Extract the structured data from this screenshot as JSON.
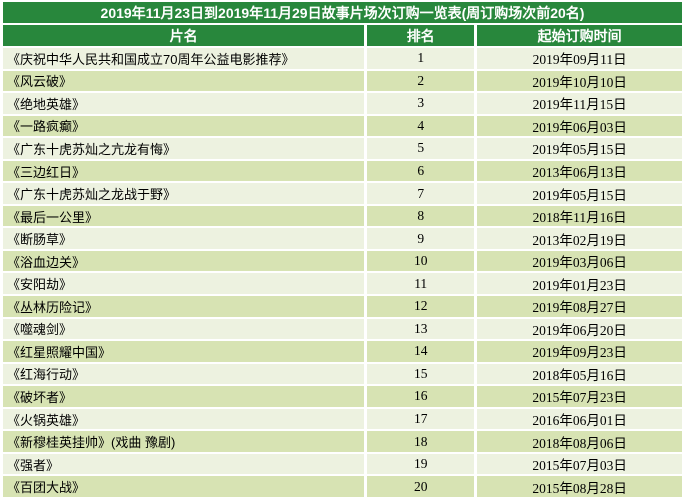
{
  "chart_data": {
    "type": "table",
    "title": "2019年11月23日到2019年11月29日故事片场次订购一览表(周订购场次前20名)",
    "columns": [
      "片名",
      "排名",
      "起始订购时间"
    ],
    "rows": [
      {
        "name": "《庆祝中华人民共和国成立70周年公益电影推荐》",
        "rank": "1",
        "date": "2019年09月11日"
      },
      {
        "name": "《风云破》",
        "rank": "2",
        "date": "2019年10月10日"
      },
      {
        "name": "《绝地英雄》",
        "rank": "3",
        "date": "2019年11月15日"
      },
      {
        "name": "《一路疯癫》",
        "rank": "4",
        "date": "2019年06月03日"
      },
      {
        "name": "《广东十虎苏灿之亢龙有悔》",
        "rank": "5",
        "date": "2019年05月15日"
      },
      {
        "name": "《三边红日》",
        "rank": "6",
        "date": "2013年06月13日"
      },
      {
        "name": "《广东十虎苏灿之龙战于野》",
        "rank": "7",
        "date": "2019年05月15日"
      },
      {
        "name": "《最后一公里》",
        "rank": "8",
        "date": "2018年11月16日"
      },
      {
        "name": "《断肠草》",
        "rank": "9",
        "date": "2013年02月19日"
      },
      {
        "name": "《浴血边关》",
        "rank": "10",
        "date": "2019年03月06日"
      },
      {
        "name": "《安阳劫》",
        "rank": "11",
        "date": "2019年01月23日"
      },
      {
        "name": "《丛林历险记》",
        "rank": "12",
        "date": "2019年08月27日"
      },
      {
        "name": "《噬魂剑》",
        "rank": "13",
        "date": "2019年06月20日"
      },
      {
        "name": "《红星照耀中国》",
        "rank": "14",
        "date": "2019年09月23日"
      },
      {
        "name": "《红海行动》",
        "rank": "15",
        "date": "2018年05月16日"
      },
      {
        "name": "《破坏者》",
        "rank": "16",
        "date": "2015年07月23日"
      },
      {
        "name": "《火锅英雄》",
        "rank": "17",
        "date": "2016年06月01日"
      },
      {
        "name": "《新穆桂英挂帅》(戏曲 豫剧)",
        "rank": "18",
        "date": "2018年08月06日"
      },
      {
        "name": "《强者》",
        "rank": "19",
        "date": "2015年07月03日"
      },
      {
        "name": "《百团大战》",
        "rank": "20",
        "date": "2015年08月28日"
      }
    ],
    "layout": {
      "legend": "none",
      "grid": "white gridlines between cells",
      "striping": "alternating light and green rows"
    }
  },
  "colors": {
    "header_green": "#28873C",
    "row_light": "#EDF2E0",
    "row_green": "#D7E3B3",
    "grid_white": "#FFFFFF",
    "header_text": "#FFFFFF",
    "body_text": "#000000"
  }
}
